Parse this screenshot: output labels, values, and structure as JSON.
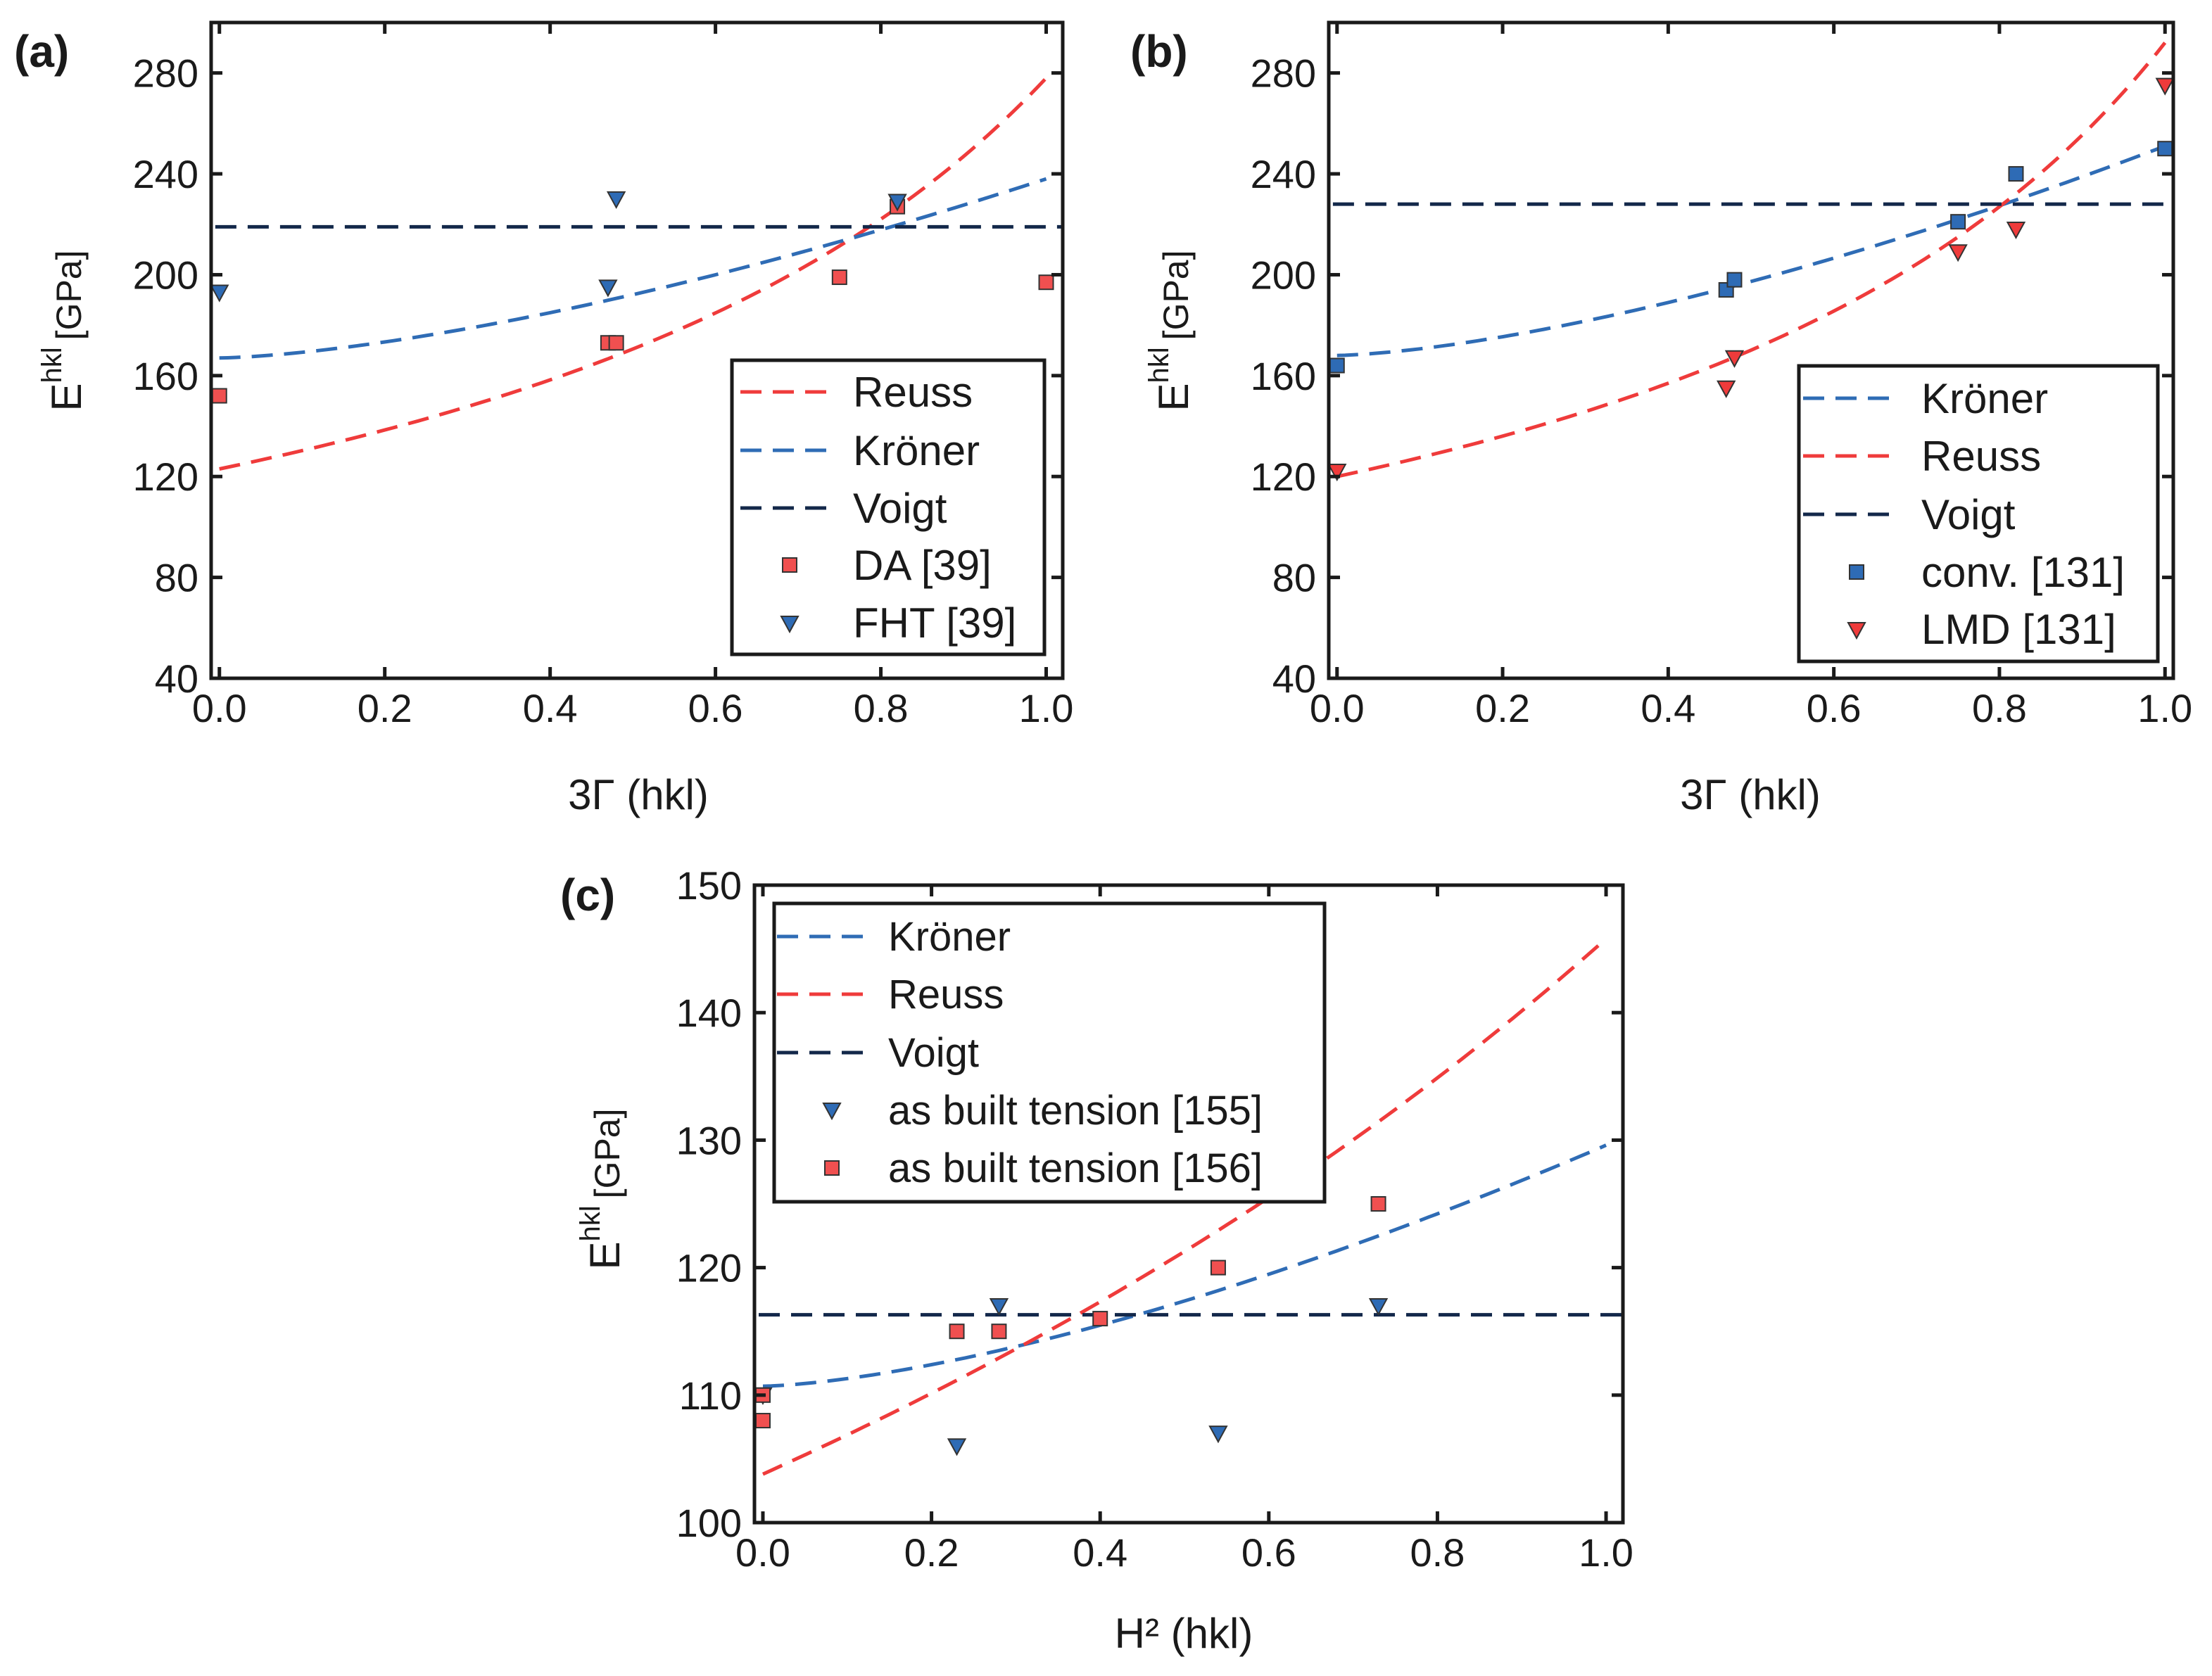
{
  "colors": {
    "reuss": "#ef3b3b",
    "kroner": "#2f6cb5",
    "voigt": "#13284a",
    "red_marker": "#f05050",
    "blue_marker": "#2e6bb5",
    "axis": "#1a1a1a"
  },
  "marker_shapes": {
    "square": "square",
    "triangle_down": "triangle-down"
  },
  "chart_data": [
    {
      "id": "a",
      "panel_label": "(a)",
      "type": "scatter",
      "xlabel": "3Γ (hkl)",
      "ylabel": "E",
      "ylabel_sup": "hkl",
      "ylabel_unit": "[GPa]",
      "xlim": [
        -0.01,
        1.02
      ],
      "ylim": [
        40,
        300
      ],
      "xticks": [
        0.0,
        0.2,
        0.4,
        0.6,
        0.8,
        1.0
      ],
      "xtick_labels": [
        "0.0",
        "0.2",
        "0.4",
        "0.6",
        "0.8",
        "1.0"
      ],
      "yticks": [
        40,
        80,
        120,
        160,
        200,
        240,
        280
      ],
      "ytick_labels": [
        "40",
        "80",
        "120",
        "160",
        "200",
        "240",
        "280"
      ],
      "legend_position": "lower-right",
      "series": [
        {
          "name": "Reuss",
          "kind": "curve",
          "color_key": "reuss",
          "model": "reuss",
          "params": [
            123,
            278
          ]
        },
        {
          "name": "Kröner",
          "kind": "curve",
          "color_key": "kroner",
          "model": "kroner",
          "params": [
            167,
            238
          ]
        },
        {
          "name": "Voigt",
          "kind": "curve",
          "color_key": "voigt",
          "model": "const",
          "params": [
            219
          ]
        },
        {
          "name": "DA [39]",
          "kind": "points",
          "marker": "square",
          "color_key": "red_marker",
          "x": [
            0.0,
            0.47,
            0.48,
            0.75,
            0.82,
            1.0
          ],
          "y": [
            152,
            173,
            173,
            199,
            227,
            197
          ]
        },
        {
          "name": "FHT [39]",
          "kind": "points",
          "marker": "triangle_down",
          "color_key": "blue_marker",
          "x": [
            0.0,
            0.47,
            0.48,
            0.82
          ],
          "y": [
            193,
            195,
            230,
            229
          ]
        }
      ]
    },
    {
      "id": "b",
      "panel_label": "(b)",
      "type": "scatter",
      "xlabel": "3Γ (hkl)",
      "ylabel": "E",
      "ylabel_sup": "hkl",
      "ylabel_unit": "[GPa]",
      "xlim": [
        -0.01,
        1.01
      ],
      "ylim": [
        40,
        300
      ],
      "xticks": [
        0.0,
        0.2,
        0.4,
        0.6,
        0.8,
        1.0
      ],
      "xtick_labels": [
        "0.0",
        "0.2",
        "0.4",
        "0.6",
        "0.8",
        "1.0"
      ],
      "yticks": [
        40,
        80,
        120,
        160,
        200,
        240,
        280
      ],
      "ytick_labels": [
        "40",
        "80",
        "120",
        "160",
        "200",
        "240",
        "280"
      ],
      "legend_position": "lower-right",
      "series": [
        {
          "name": "Kröner",
          "kind": "curve",
          "color_key": "kroner",
          "model": "kroner",
          "params": [
            168,
            251
          ]
        },
        {
          "name": "Reuss",
          "kind": "curve",
          "color_key": "reuss",
          "model": "reuss",
          "params": [
            120,
            292
          ]
        },
        {
          "name": "Voigt",
          "kind": "curve",
          "color_key": "voigt",
          "model": "const",
          "params": [
            228
          ]
        },
        {
          "name": "conv. [131]",
          "kind": "points",
          "marker": "square",
          "color_key": "blue_marker",
          "x": [
            0.0,
            0.47,
            0.48,
            0.75,
            0.82,
            1.0
          ],
          "y": [
            164,
            194,
            198,
            221,
            240,
            250
          ]
        },
        {
          "name": "LMD [131]",
          "kind": "points",
          "marker": "triangle_down",
          "color_key": "reuss",
          "x": [
            0.0,
            0.47,
            0.48,
            0.75,
            0.82,
            1.0
          ],
          "y": [
            122,
            155,
            167,
            209,
            218,
            275
          ]
        }
      ]
    },
    {
      "id": "c",
      "panel_label": "(c)",
      "type": "scatter",
      "xlabel": "H² (hkl)",
      "ylabel": "E",
      "ylabel_sup": "hkl",
      "ylabel_unit": "[GPa]",
      "xlim": [
        -0.01,
        1.02
      ],
      "ylim": [
        100,
        150
      ],
      "xticks": [
        0.0,
        0.2,
        0.4,
        0.6,
        0.8,
        1.0
      ],
      "xtick_labels": [
        "0.0",
        "0.2",
        "0.4",
        "0.6",
        "0.8",
        "1.0"
      ],
      "yticks": [
        100,
        110,
        120,
        130,
        140,
        150
      ],
      "ytick_labels": [
        "100",
        "110",
        "120",
        "130",
        "140",
        "150"
      ],
      "legend_position": "upper-left",
      "series": [
        {
          "name": "Kröner",
          "kind": "curve",
          "color_key": "kroner",
          "model": "kroner",
          "params": [
            110.7,
            129.6
          ]
        },
        {
          "name": "Reuss",
          "kind": "curve",
          "color_key": "reuss",
          "model": "reuss",
          "params": [
            103.8,
            145.8
          ]
        },
        {
          "name": "Voigt",
          "kind": "curve",
          "color_key": "voigt",
          "model": "const",
          "params": [
            116.3
          ]
        },
        {
          "name": "as built tension [155]",
          "kind": "points",
          "marker": "triangle_down",
          "color_key": "blue_marker",
          "x": [
            0.0,
            0.23,
            0.28,
            0.54,
            0.73
          ],
          "y": [
            110,
            106,
            117,
            107,
            117
          ]
        },
        {
          "name": "as built tension [156]",
          "kind": "points",
          "marker": "square",
          "color_key": "red_marker",
          "x": [
            0.0,
            0.0,
            0.23,
            0.28,
            0.4,
            0.54,
            0.73
          ],
          "y": [
            110,
            108,
            115,
            115,
            116,
            120,
            125
          ]
        }
      ]
    }
  ]
}
